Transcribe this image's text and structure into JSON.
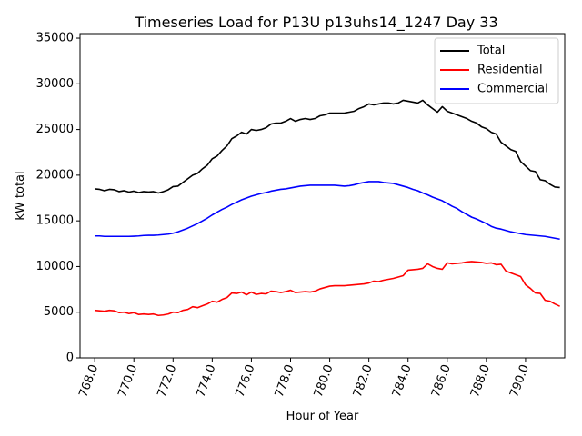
{
  "chart_data": {
    "type": "line",
    "title": "Timeseries Load for P13U p13uhs14_1247  Day 33",
    "xlabel": "Hour of Year",
    "ylabel": "kW total",
    "xlim": [
      767.25,
      792.0
    ],
    "ylim": [
      0,
      35500
    ],
    "x_ticks": [
      768,
      770,
      772,
      774,
      776,
      778,
      780,
      782,
      784,
      786,
      788,
      790
    ],
    "x_tick_labels": [
      "768.0",
      "770.0",
      "772.0",
      "774.0",
      "776.0",
      "778.0",
      "780.0",
      "782.0",
      "784.0",
      "786.0",
      "788.0",
      "790.0"
    ],
    "y_ticks": [
      0,
      5000,
      10000,
      15000,
      20000,
      25000,
      30000,
      35000
    ],
    "y_tick_labels": [
      "0",
      "5000",
      "10000",
      "15000",
      "20000",
      "25000",
      "30000",
      "35000"
    ],
    "legend_position": "top-right",
    "x": [
      768.0,
      768.25,
      768.5,
      768.75,
      769.0,
      769.25,
      769.5,
      769.75,
      770.0,
      770.25,
      770.5,
      770.75,
      771.0,
      771.25,
      771.5,
      771.75,
      772.0,
      772.25,
      772.5,
      772.75,
      773.0,
      773.25,
      773.5,
      773.75,
      774.0,
      774.25,
      774.5,
      774.75,
      775.0,
      775.25,
      775.5,
      775.75,
      776.0,
      776.25,
      776.5,
      776.75,
      777.0,
      777.25,
      777.5,
      777.75,
      778.0,
      778.25,
      778.5,
      778.75,
      779.0,
      779.25,
      779.5,
      779.75,
      780.0,
      780.25,
      780.5,
      780.75,
      781.0,
      781.25,
      781.5,
      781.75,
      782.0,
      782.25,
      782.5,
      782.75,
      783.0,
      783.25,
      783.5,
      783.75,
      784.0,
      784.25,
      784.5,
      784.75,
      785.0,
      785.25,
      785.5,
      785.75,
      786.0,
      786.25,
      786.5,
      786.75,
      787.0,
      787.25,
      787.5,
      787.75,
      788.0,
      788.25,
      788.5,
      788.75,
      789.0,
      789.25,
      789.5,
      789.75,
      790.0,
      790.25,
      790.5,
      790.75,
      791.0,
      791.25,
      791.5,
      791.75
    ],
    "series": [
      {
        "name": "Total",
        "color": "#000000",
        "values": [
          18500,
          18450,
          18300,
          18450,
          18400,
          18200,
          18300,
          18150,
          18250,
          18100,
          18200,
          18150,
          18200,
          18050,
          18200,
          18400,
          18750,
          18800,
          19200,
          19600,
          20000,
          20200,
          20700,
          21100,
          21800,
          22100,
          22700,
          23200,
          24000,
          24300,
          24700,
          24500,
          25000,
          24900,
          25000,
          25200,
          25600,
          25700,
          25700,
          25900,
          26200,
          25900,
          26100,
          26200,
          26100,
          26200,
          26500,
          26600,
          26800,
          26800,
          26800,
          26800,
          26900,
          27000,
          27300,
          27500,
          27800,
          27700,
          27800,
          27900,
          27900,
          27800,
          27900,
          28200,
          28100,
          28000,
          27900,
          28200,
          27700,
          27300,
          26900,
          27500,
          27000,
          26800,
          26600,
          26400,
          26200,
          25900,
          25700,
          25300,
          25100,
          24700,
          24500,
          23600,
          23200,
          22800,
          22600,
          21500,
          21000,
          20500,
          20400,
          19500,
          19400,
          19000,
          18700,
          18650
        ]
      },
      {
        "name": "Residential",
        "color": "#ff0000",
        "values": [
          5200,
          5150,
          5100,
          5200,
          5150,
          4950,
          5000,
          4850,
          4950,
          4750,
          4800,
          4750,
          4800,
          4650,
          4700,
          4800,
          5000,
          4950,
          5200,
          5300,
          5600,
          5500,
          5700,
          5900,
          6200,
          6100,
          6400,
          6600,
          7100,
          7050,
          7200,
          6900,
          7200,
          6950,
          7050,
          7000,
          7300,
          7250,
          7150,
          7250,
          7400,
          7150,
          7200,
          7250,
          7200,
          7300,
          7550,
          7700,
          7850,
          7900,
          7900,
          7900,
          7950,
          8000,
          8050,
          8100,
          8200,
          8400,
          8350,
          8500,
          8600,
          8700,
          8850,
          9000,
          9600,
          9650,
          9700,
          9800,
          10300,
          10000,
          9800,
          9700,
          10400,
          10300,
          10350,
          10400,
          10500,
          10550,
          10500,
          10450,
          10350,
          10400,
          10200,
          10250,
          9500,
          9300,
          9100,
          8900,
          8000,
          7600,
          7100,
          7050,
          6300,
          6200,
          5900,
          5650
        ]
      },
      {
        "name": "Commercial",
        "color": "#0000ff",
        "values": [
          13350,
          13350,
          13300,
          13300,
          13300,
          13300,
          13300,
          13300,
          13320,
          13350,
          13400,
          13420,
          13420,
          13450,
          13500,
          13550,
          13650,
          13800,
          14000,
          14200,
          14450,
          14700,
          15000,
          15300,
          15650,
          15950,
          16250,
          16500,
          16800,
          17050,
          17300,
          17500,
          17700,
          17850,
          18000,
          18100,
          18250,
          18350,
          18450,
          18500,
          18600,
          18700,
          18800,
          18850,
          18900,
          18900,
          18900,
          18900,
          18900,
          18900,
          18850,
          18800,
          18850,
          18950,
          19100,
          19200,
          19300,
          19300,
          19300,
          19200,
          19150,
          19100,
          18950,
          18800,
          18650,
          18450,
          18300,
          18050,
          17850,
          17600,
          17400,
          17200,
          16900,
          16600,
          16350,
          16000,
          15700,
          15400,
          15200,
          14950,
          14700,
          14400,
          14200,
          14100,
          13950,
          13800,
          13700,
          13600,
          13500,
          13450,
          13400,
          13350,
          13300,
          13200,
          13100,
          13000
        ]
      }
    ]
  }
}
